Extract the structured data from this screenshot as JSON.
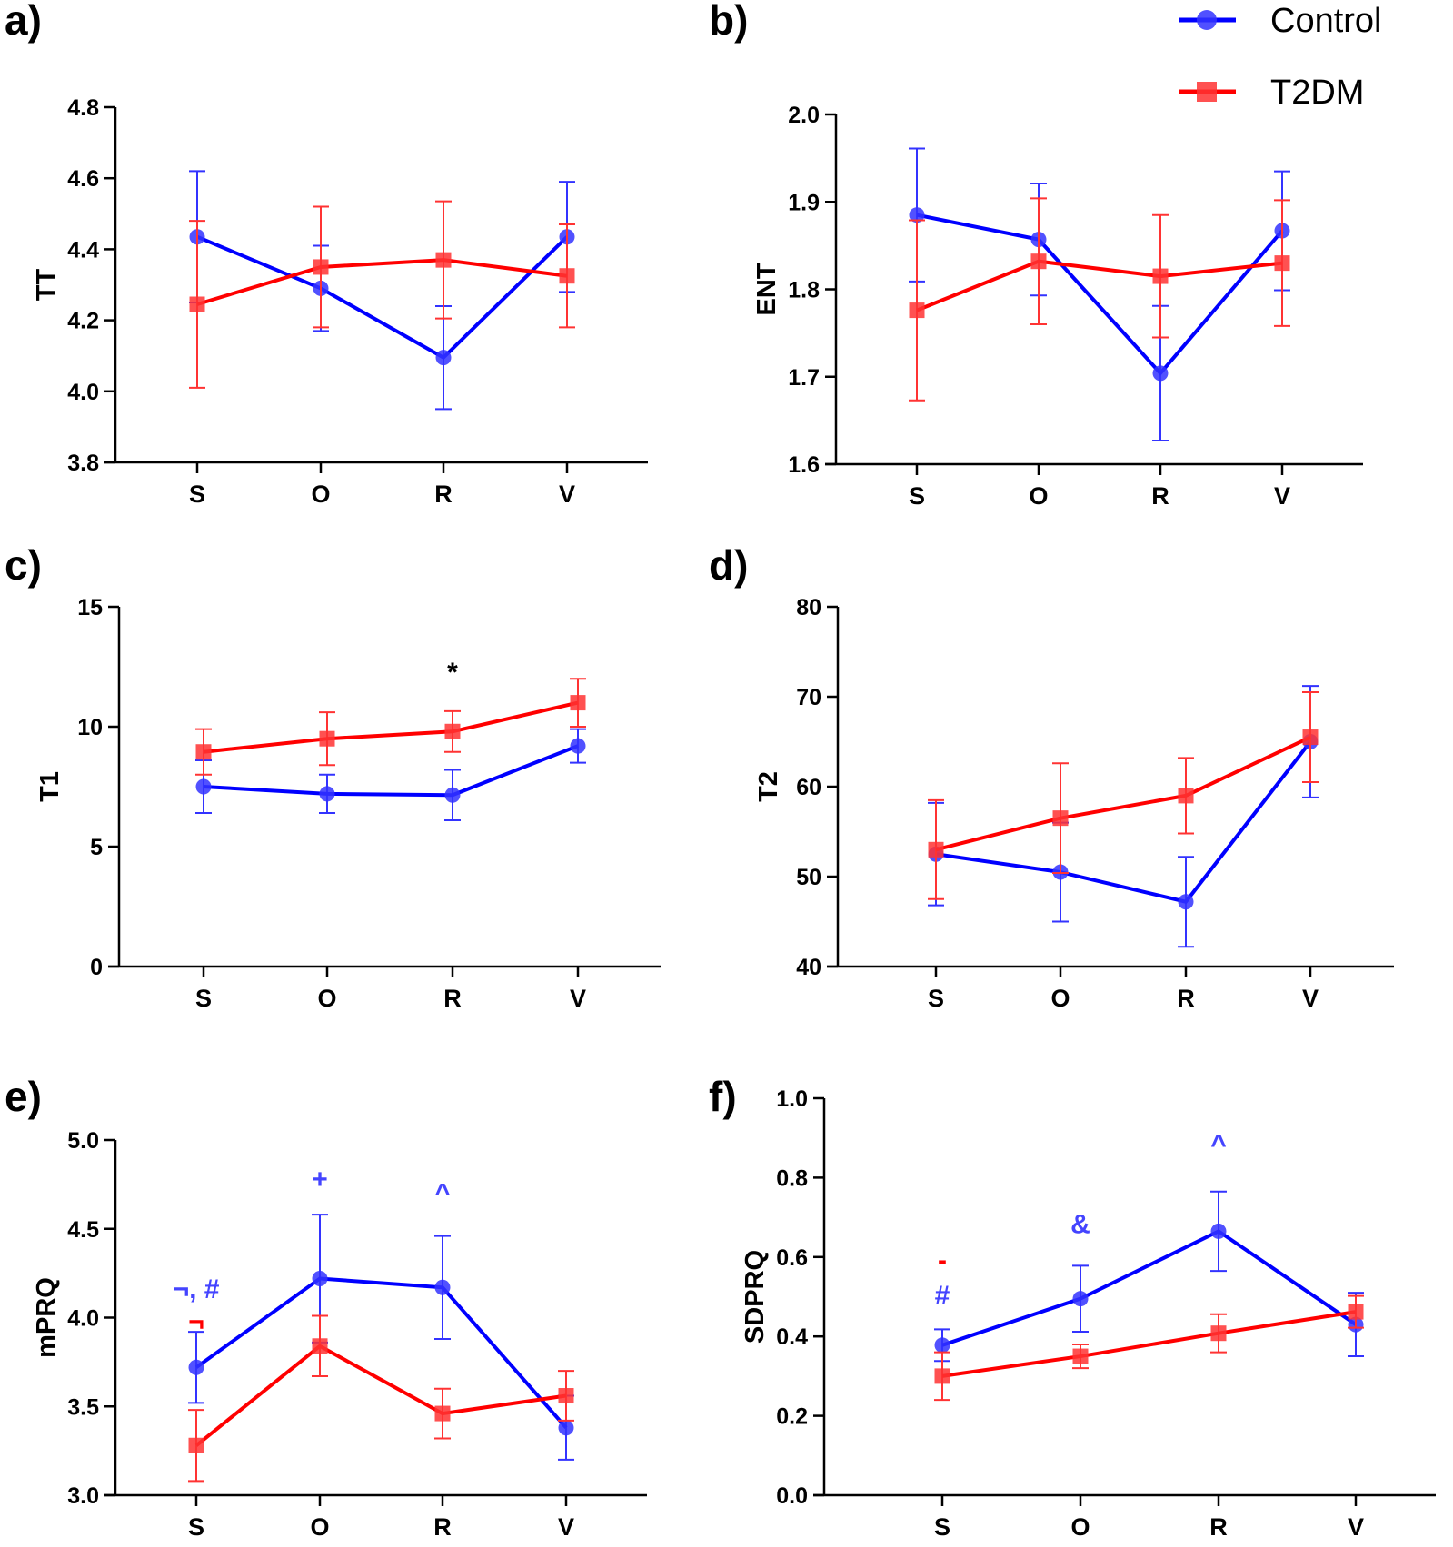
{
  "legend": {
    "placement": "top-right",
    "entries": [
      {
        "name": "Control",
        "color": "#0000ff",
        "marker": "circle"
      },
      {
        "name": "T2DM",
        "color": "#ff0000",
        "marker": "square"
      }
    ]
  },
  "chart_data": [
    {
      "panel": "a)",
      "type": "line",
      "ylabel": "TT",
      "ylim": [
        3.8,
        4.8
      ],
      "yticks": [
        "3.8",
        "4.0",
        "4.2",
        "4.4",
        "4.6",
        "4.8"
      ],
      "categories": [
        "S",
        "O",
        "R",
        "V"
      ],
      "series": [
        {
          "name": "Control",
          "values": [
            4.435,
            4.29,
            4.095,
            4.435
          ],
          "errors": [
            0.185,
            0.12,
            0.145,
            0.155
          ]
        },
        {
          "name": "T2DM",
          "values": [
            4.245,
            4.35,
            4.37,
            4.325
          ],
          "errors": [
            0.235,
            0.17,
            0.165,
            0.145
          ]
        }
      ],
      "annotations": []
    },
    {
      "panel": "b)",
      "type": "line",
      "ylabel": "ENT",
      "ylim": [
        1.6,
        2.0
      ],
      "yticks": [
        "1.6",
        "1.7",
        "1.8",
        "1.9",
        "2.0"
      ],
      "categories": [
        "S",
        "O",
        "R",
        "V"
      ],
      "series": [
        {
          "name": "Control",
          "values": [
            1.885,
            1.857,
            1.704,
            1.867
          ],
          "errors": [
            0.076,
            0.064,
            0.077,
            0.068
          ]
        },
        {
          "name": "T2DM",
          "values": [
            1.776,
            1.832,
            1.815,
            1.83
          ],
          "errors": [
            0.103,
            0.072,
            0.07,
            0.072
          ]
        }
      ],
      "annotations": []
    },
    {
      "panel": "c)",
      "type": "line",
      "ylabel": "T1",
      "ylim": [
        0,
        15
      ],
      "yticks": [
        "0",
        "5",
        "10",
        "15"
      ],
      "categories": [
        "S",
        "O",
        "R",
        "V"
      ],
      "series": [
        {
          "name": "Control",
          "values": [
            7.5,
            7.2,
            7.15,
            9.2
          ],
          "errors": [
            1.1,
            0.8,
            1.05,
            0.7
          ]
        },
        {
          "name": "T2DM",
          "values": [
            8.95,
            9.5,
            9.8,
            11.0
          ],
          "errors": [
            0.95,
            1.1,
            0.85,
            1.0
          ]
        }
      ],
      "annotations": [
        {
          "text": "*",
          "category": "R",
          "y": 11.9,
          "color": "#000000"
        }
      ]
    },
    {
      "panel": "d)",
      "type": "line",
      "ylabel": "T2",
      "ylim": [
        40,
        80
      ],
      "yticks": [
        "40",
        "50",
        "60",
        "70",
        "80"
      ],
      "categories": [
        "S",
        "O",
        "R",
        "V"
      ],
      "series": [
        {
          "name": "Control",
          "values": [
            52.5,
            50.5,
            47.2,
            65.0
          ],
          "errors": [
            5.7,
            5.5,
            5.0,
            6.2
          ]
        },
        {
          "name": "T2DM",
          "values": [
            53.0,
            56.5,
            59.0,
            65.5
          ],
          "errors": [
            5.5,
            6.1,
            4.2,
            5.0
          ]
        }
      ],
      "annotations": []
    },
    {
      "panel": "e)",
      "type": "line",
      "ylabel": "mPRQ",
      "ylim": [
        3.0,
        5.0
      ],
      "yticks": [
        "3.0",
        "3.5",
        "4.0",
        "4.5",
        "5.0"
      ],
      "categories": [
        "S",
        "O",
        "R",
        "V"
      ],
      "series": [
        {
          "name": "Control",
          "values": [
            3.72,
            4.22,
            4.17,
            3.38
          ],
          "errors": [
            0.2,
            0.36,
            0.29,
            0.18
          ]
        },
        {
          "name": "T2DM",
          "values": [
            3.28,
            3.84,
            3.46,
            3.56
          ],
          "errors": [
            0.2,
            0.17,
            0.14,
            0.14
          ]
        }
      ],
      "annotations": [
        {
          "text": "¬, #",
          "category": "S",
          "y": 4.11,
          "color": "#4444ff"
        },
        {
          "text": "¬",
          "category": "S",
          "y": 4.03,
          "color": "#ff0000"
        },
        {
          "text": "+",
          "category": "O",
          "y": 4.73,
          "color": "#4444ff"
        },
        {
          "text": "^",
          "category": "R",
          "y": 4.65,
          "color": "#4444ff"
        }
      ]
    },
    {
      "panel": "f)",
      "type": "line",
      "ylabel": "SDPRQ",
      "ylim": [
        0.0,
        1.0
      ],
      "yticks": [
        "0.0",
        "0.2",
        "0.4",
        "0.6",
        "0.8",
        "1.0"
      ],
      "categories": [
        "S",
        "O",
        "R",
        "V"
      ],
      "series": [
        {
          "name": "Control",
          "values": [
            0.378,
            0.495,
            0.665,
            0.43
          ],
          "errors": [
            0.04,
            0.083,
            0.1,
            0.08
          ]
        },
        {
          "name": "T2DM",
          "values": [
            0.3,
            0.35,
            0.408,
            0.462
          ],
          "errors": [
            0.06,
            0.03,
            0.048,
            0.04
          ]
        }
      ],
      "annotations": [
        {
          "text": "-",
          "category": "S",
          "y": 0.57,
          "color": "#ff0000"
        },
        {
          "text": "#",
          "category": "S",
          "y": 0.48,
          "color": "#4444ff"
        },
        {
          "text": "&",
          "category": "O",
          "y": 0.66,
          "color": "#4444ff"
        },
        {
          "text": "^",
          "category": "R",
          "y": 0.86,
          "color": "#4444ff"
        }
      ]
    }
  ]
}
